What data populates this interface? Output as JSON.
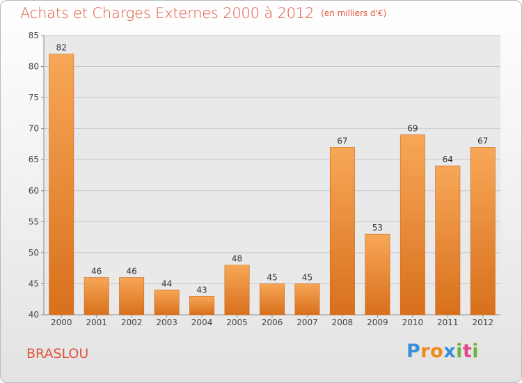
{
  "title": "Achats et Charges Externes 2000 à 2012",
  "unit": "(en milliers d'€)",
  "place": "BRASLOU",
  "logo": "Proxiti",
  "colors": {
    "bar_light": "#f7a757",
    "bar_dark": "#d8701c",
    "title": "#e0543b"
  },
  "chart_data": {
    "type": "bar",
    "title": "Achats et Charges Externes 2000 à 2012",
    "categories": [
      "2000",
      "2001",
      "2002",
      "2003",
      "2004",
      "2005",
      "2006",
      "2007",
      "2008",
      "2009",
      "2010",
      "2011",
      "2012"
    ],
    "values": [
      82,
      46,
      46,
      44,
      43,
      48,
      45,
      45,
      67,
      53,
      69,
      64,
      67
    ],
    "ylim": [
      40,
      85
    ],
    "yticks": [
      40,
      45,
      50,
      55,
      60,
      65,
      70,
      75,
      80,
      85
    ],
    "grid": true
  }
}
